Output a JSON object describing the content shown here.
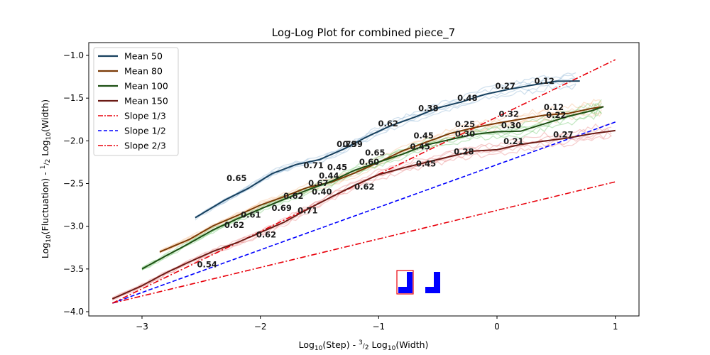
{
  "chart_data": {
    "type": "line",
    "title": "Log-Log Plot for combined piece_7",
    "xlabel": "Log10(Step) - 3/2 Log10(Width)",
    "ylabel": "Log10(Fluctuation) - 1/2 Log10(Width)",
    "xlim": [
      -3.45,
      1.2
    ],
    "ylim": [
      -4.05,
      -0.85
    ],
    "xticks": [
      -3,
      -2,
      -1,
      0,
      1
    ],
    "yticks": [
      -4.0,
      -3.5,
      -3.0,
      -2.5,
      -2.0,
      -1.5,
      -1.0
    ],
    "xtick_labels": [
      "−3",
      "−2",
      "−1",
      "0",
      "1"
    ],
    "ytick_labels": [
      "−4.0",
      "−3.5",
      "−3.0",
      "−2.5",
      "−2.0",
      "−1.5",
      "−1.0"
    ],
    "grid": false,
    "legend_position": "top-left",
    "series": [
      {
        "name": "Mean 50",
        "color": "#17405e",
        "band_color": "#7aa9cf",
        "x": [
          -2.55,
          -2.3,
          -2.1,
          -1.9,
          -1.7,
          -1.5,
          -1.3,
          -1.1,
          -0.9,
          -0.7,
          -0.5,
          -0.3,
          -0.1,
          0.1,
          0.3,
          0.5,
          0.7
        ],
        "y": [
          -2.9,
          -2.7,
          -2.55,
          -2.38,
          -2.28,
          -2.22,
          -2.1,
          -1.95,
          -1.82,
          -1.72,
          -1.62,
          -1.55,
          -1.45,
          -1.4,
          -1.35,
          -1.3,
          -1.3
        ]
      },
      {
        "name": "Mean 80",
        "color": "#7a3a05",
        "band_color": "#f5b27a",
        "x": [
          -2.85,
          -2.6,
          -2.4,
          -2.2,
          -2.0,
          -1.8,
          -1.6,
          -1.4,
          -1.2,
          -1.0,
          -0.8,
          -0.6,
          -0.4,
          -0.2,
          0.0,
          0.2,
          0.4,
          0.6,
          0.8,
          0.9
        ],
        "y": [
          -3.3,
          -3.15,
          -3.0,
          -2.88,
          -2.75,
          -2.65,
          -2.55,
          -2.48,
          -2.38,
          -2.25,
          -2.12,
          -2.02,
          -1.92,
          -1.85,
          -1.8,
          -1.75,
          -1.7,
          -1.68,
          -1.62,
          -1.6
        ]
      },
      {
        "name": "Mean 100",
        "color": "#1d4f13",
        "band_color": "#5cbf5a",
        "x": [
          -3.0,
          -2.8,
          -2.6,
          -2.4,
          -2.2,
          -2.0,
          -1.8,
          -1.6,
          -1.4,
          -1.2,
          -1.0,
          -0.8,
          -0.6,
          -0.4,
          -0.2,
          0.0,
          0.2,
          0.4,
          0.6,
          0.8,
          0.9
        ],
        "y": [
          -3.5,
          -3.35,
          -3.2,
          -3.05,
          -2.92,
          -2.8,
          -2.68,
          -2.58,
          -2.48,
          -2.35,
          -2.25,
          -2.15,
          -2.05,
          -1.98,
          -1.92,
          -1.9,
          -1.88,
          -1.8,
          -1.72,
          -1.65,
          -1.6
        ]
      },
      {
        "name": "Mean 150",
        "color": "#6b1a14",
        "band_color": "#e57373",
        "x": [
          -3.25,
          -3.0,
          -2.8,
          -2.6,
          -2.4,
          -2.2,
          -2.0,
          -1.8,
          -1.6,
          -1.4,
          -1.2,
          -1.0,
          -0.8,
          -0.6,
          -0.4,
          -0.2,
          0.0,
          0.2,
          0.4,
          0.6,
          0.8,
          1.0
        ],
        "y": [
          -3.85,
          -3.7,
          -3.55,
          -3.42,
          -3.3,
          -3.2,
          -3.08,
          -2.95,
          -2.8,
          -2.65,
          -2.52,
          -2.4,
          -2.32,
          -2.25,
          -2.18,
          -2.12,
          -2.1,
          -2.05,
          -2.0,
          -1.97,
          -1.92,
          -1.88
        ]
      }
    ],
    "reference_lines": [
      {
        "name": "Slope 1/3",
        "color": "#e8000b",
        "dash": "dashdot",
        "x": [
          -3.25,
          1.0
        ],
        "y": [
          -3.9,
          -2.48
        ]
      },
      {
        "name": "Slope 1/2",
        "color": "#0000ff",
        "dash": "dashed",
        "x": [
          -3.25,
          1.0
        ],
        "y": [
          -3.9,
          -1.78
        ]
      },
      {
        "name": "Slope 2/3",
        "color": "#e8000b",
        "dash": "dashdot",
        "x": [
          -3.25,
          1.0
        ],
        "y": [
          -3.9,
          -1.05
        ]
      }
    ],
    "slope_annotations": [
      {
        "text": "0.65",
        "x": -2.2,
        "y": -2.47,
        "color": "#17405e"
      },
      {
        "text": "0.71",
        "x": -1.55,
        "y": -2.32,
        "color": "#17405e"
      },
      {
        "text": "0.59",
        "x": -1.22,
        "y": -2.07,
        "color": "#17405e"
      },
      {
        "text": "0.62",
        "x": -0.92,
        "y": -1.83,
        "color": "#17405e"
      },
      {
        "text": "0.38",
        "x": -0.58,
        "y": -1.65,
        "color": "#17405e"
      },
      {
        "text": "0.48",
        "x": -0.25,
        "y": -1.53,
        "color": "#17405e"
      },
      {
        "text": "0.27",
        "x": 0.07,
        "y": -1.39,
        "color": "#17405e"
      },
      {
        "text": "0.12",
        "x": 0.4,
        "y": -1.33,
        "color": "#17405e"
      },
      {
        "text": "0.61",
        "x": -2.08,
        "y": -2.9,
        "color": "#7a3a05"
      },
      {
        "text": "0.62",
        "x": -1.72,
        "y": -2.68,
        "color": "#7a3a05"
      },
      {
        "text": "0.45",
        "x": -1.35,
        "y": -2.34,
        "color": "#7a3a05"
      },
      {
        "text": "0.79",
        "x": -1.27,
        "y": -2.07,
        "color": "#7a3a05"
      },
      {
        "text": "0.65",
        "x": -1.03,
        "y": -2.17,
        "color": "#7a3a05"
      },
      {
        "text": "0.45",
        "x": -0.62,
        "y": -1.97,
        "color": "#7a3a05"
      },
      {
        "text": "0.25",
        "x": -0.27,
        "y": -1.84,
        "color": "#7a3a05"
      },
      {
        "text": "0.32",
        "x": 0.1,
        "y": -1.72,
        "color": "#7a3a05"
      },
      {
        "text": "0.12",
        "x": 0.48,
        "y": -1.64,
        "color": "#7a3a05"
      },
      {
        "text": "0.62",
        "x": -2.22,
        "y": -3.02,
        "color": "#1d4f13"
      },
      {
        "text": "0.69",
        "x": -1.82,
        "y": -2.82,
        "color": "#1d4f13"
      },
      {
        "text": "0.44",
        "x": -1.42,
        "y": -2.44,
        "color": "#1d4f13"
      },
      {
        "text": "0.67",
        "x": -1.51,
        "y": -2.53,
        "color": "#1d4f13"
      },
      {
        "text": "0.60",
        "x": -1.08,
        "y": -2.28,
        "color": "#1d4f13"
      },
      {
        "text": "0.45",
        "x": -0.65,
        "y": -2.1,
        "color": "#1d4f13"
      },
      {
        "text": "0.30",
        "x": -0.27,
        "y": -1.95,
        "color": "#1d4f13"
      },
      {
        "text": "0.30",
        "x": 0.12,
        "y": -1.85,
        "color": "#1d4f13"
      },
      {
        "text": "0.22",
        "x": 0.5,
        "y": -1.73,
        "color": "#1d4f13"
      },
      {
        "text": "0.54",
        "x": -2.45,
        "y": -3.48,
        "color": "#6b1a14"
      },
      {
        "text": "0.62",
        "x": -1.95,
        "y": -3.13,
        "color": "#6b1a14"
      },
      {
        "text": "0.71",
        "x": -1.6,
        "y": -2.85,
        "color": "#6b1a14"
      },
      {
        "text": "0.40",
        "x": -1.48,
        "y": -2.63,
        "color": "#6b1a14"
      },
      {
        "text": "0.62",
        "x": -1.12,
        "y": -2.57,
        "color": "#6b1a14"
      },
      {
        "text": "0.45",
        "x": -0.6,
        "y": -2.3,
        "color": "#6b1a14"
      },
      {
        "text": "0.28",
        "x": -0.28,
        "y": -2.16,
        "color": "#6b1a14"
      },
      {
        "text": "0.21",
        "x": 0.14,
        "y": -2.04,
        "color": "#6b1a14"
      },
      {
        "text": "0.27",
        "x": 0.56,
        "y": -1.96,
        "color": "#6b1a14"
      }
    ],
    "legend_entries": [
      "Mean 50",
      "Mean 80",
      "Mean 100",
      "Mean 150",
      "Slope 1/3",
      "Slope 1/2",
      "Slope 2/3"
    ]
  }
}
